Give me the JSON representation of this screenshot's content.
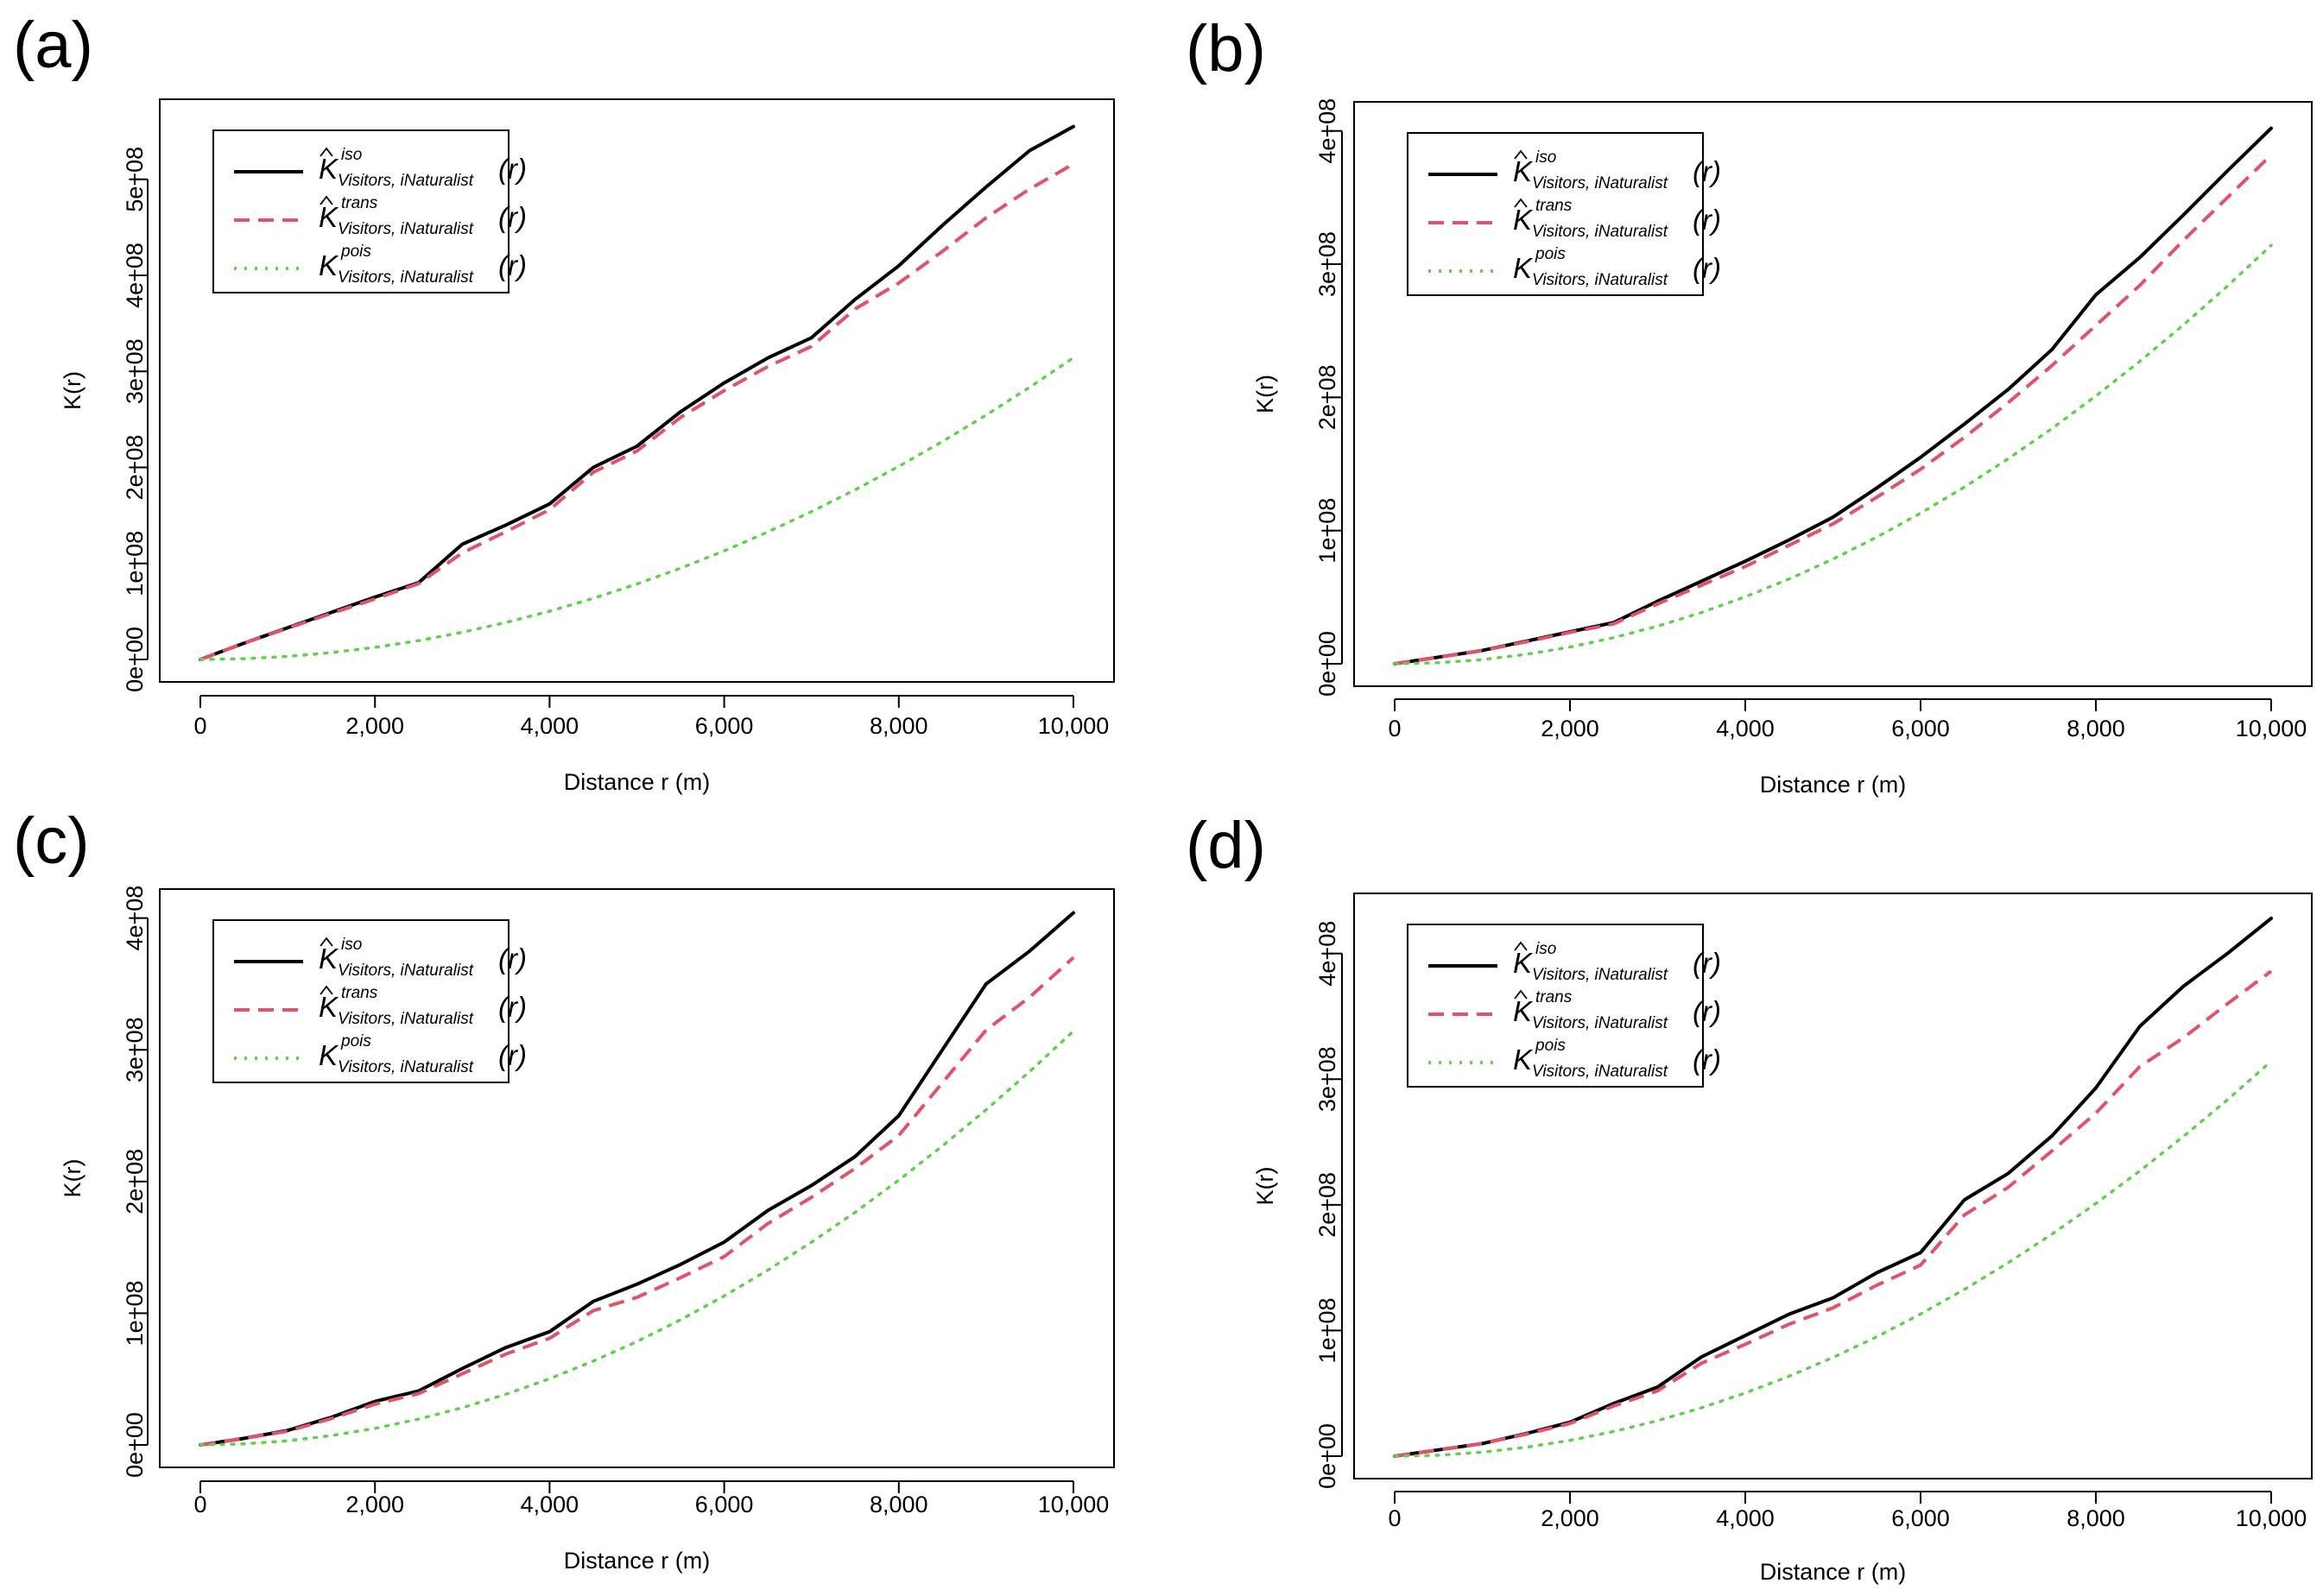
{
  "figure": {
    "x_axis_title": "Distance r (m)",
    "y_axis_title": "K(r)",
    "series_styles": [
      {
        "key": "iso",
        "color": "#000000",
        "dash": "solid"
      },
      {
        "key": "trans",
        "color": "#df536b",
        "dash": "dashed"
      },
      {
        "key": "pois",
        "color": "#61d04f",
        "dash": "dotted"
      }
    ],
    "legend": {
      "symbol": "K",
      "subscript": "Visitors, iNaturalist",
      "argument": "(r)",
      "entries": [
        {
          "key": "iso",
          "superscript": "iso",
          "hat": true
        },
        {
          "key": "trans",
          "superscript": "trans",
          "hat": true
        },
        {
          "key": "pois",
          "superscript": "pois",
          "hat": false
        }
      ]
    }
  },
  "chart_data": [
    {
      "panel_label": "(a)",
      "type": "line",
      "xlabel": "Distance r (m)",
      "ylabel": "K(r)",
      "xlim": [
        0,
        10000
      ],
      "ylim": [
        0,
        560000000
      ],
      "x_ticks": [
        0,
        2000,
        4000,
        6000,
        8000,
        10000
      ],
      "x_tick_labels": [
        "0",
        "2,000",
        "4,000",
        "6,000",
        "8,000",
        "10,000"
      ],
      "y_ticks": [
        0,
        100000000,
        200000000,
        300000000,
        400000000,
        500000000
      ],
      "y_tick_labels": [
        "0e+00",
        "1e+08",
        "2e+08",
        "3e+08",
        "4e+08",
        "5e+08"
      ],
      "legend_position": "top-left",
      "x": [
        0,
        500,
        1000,
        1500,
        2000,
        2500,
        3000,
        3500,
        4000,
        4500,
        5000,
        5500,
        6000,
        6500,
        7000,
        7500,
        8000,
        8500,
        9000,
        9500,
        10000
      ],
      "series": [
        {
          "name": "iso",
          "values": [
            0,
            17000000,
            33000000,
            49000000,
            65000000,
            80000000,
            120000000,
            140000000,
            162000000,
            200000000,
            222000000,
            258000000,
            288000000,
            314000000,
            335000000,
            375000000,
            410000000,
            452000000,
            492000000,
            530000000,
            555000000
          ]
        },
        {
          "name": "trans",
          "values": [
            0,
            17000000,
            32500000,
            48000000,
            63000000,
            79000000,
            111000000,
            133000000,
            156000000,
            195000000,
            217000000,
            252000000,
            280000000,
            305000000,
            326000000,
            365000000,
            392000000,
            425000000,
            460000000,
            490000000,
            516000000
          ]
        },
        {
          "name": "pois",
          "values": [
            0,
            785000,
            3140000,
            7070000,
            12570000,
            19630000,
            28270000,
            38480000,
            50270000,
            63620000,
            78540000,
            95030000,
            113100000,
            132730000,
            153940000,
            176710000,
            201060000,
            226980000,
            254470000,
            283530000,
            314160000
          ]
        }
      ]
    },
    {
      "panel_label": "(b)",
      "type": "line",
      "xlabel": "Distance r (m)",
      "ylabel": "K(r)",
      "xlim": [
        0,
        10000
      ],
      "ylim": [
        0,
        405000000
      ],
      "x_ticks": [
        0,
        2000,
        4000,
        6000,
        8000,
        10000
      ],
      "x_tick_labels": [
        "0",
        "2,000",
        "4,000",
        "6,000",
        "8,000",
        "10,000"
      ],
      "y_ticks": [
        0,
        100000000,
        200000000,
        300000000,
        400000000
      ],
      "y_tick_labels": [
        "0e+00",
        "1e+08",
        "2e+08",
        "3e+08",
        "4e+08"
      ],
      "legend_position": "top-left",
      "x": [
        0,
        500,
        1000,
        1500,
        2000,
        2500,
        3000,
        3500,
        4000,
        4500,
        5000,
        5500,
        6000,
        6500,
        7000,
        7500,
        8000,
        8500,
        9000,
        9500,
        10000
      ],
      "series": [
        {
          "name": "iso",
          "values": [
            0,
            5000000,
            10000000,
            17000000,
            24000000,
            31000000,
            47000000,
            62000000,
            77000000,
            93000000,
            110000000,
            132000000,
            155000000,
            180000000,
            206000000,
            236000000,
            277000000,
            305000000,
            337000000,
            370000000,
            402000000
          ]
        },
        {
          "name": "trans",
          "values": [
            0,
            5000000,
            10000000,
            16500000,
            23500000,
            30000000,
            45000000,
            59000000,
            73000000,
            89000000,
            105000000,
            125000000,
            146000000,
            170000000,
            196000000,
            224000000,
            254000000,
            284000000,
            318000000,
            350000000,
            382000000
          ]
        },
        {
          "name": "pois",
          "values": [
            0,
            785000,
            3140000,
            7070000,
            12570000,
            19630000,
            28270000,
            38480000,
            50270000,
            63620000,
            78540000,
            95030000,
            113100000,
            132730000,
            153940000,
            176710000,
            201060000,
            226980000,
            254470000,
            283530000,
            314160000
          ]
        }
      ]
    },
    {
      "panel_label": "(c)",
      "type": "line",
      "xlabel": "Distance r (m)",
      "ylabel": "K(r)",
      "xlim": [
        0,
        10000
      ],
      "ylim": [
        0,
        405000000
      ],
      "x_ticks": [
        0,
        2000,
        4000,
        6000,
        8000,
        10000
      ],
      "x_tick_labels": [
        "0",
        "2,000",
        "4,000",
        "6,000",
        "8,000",
        "10,000"
      ],
      "y_ticks": [
        0,
        100000000,
        200000000,
        300000000,
        400000000
      ],
      "y_tick_labels": [
        "0e+00",
        "1e+08",
        "2e+08",
        "3e+08",
        "4e+08"
      ],
      "legend_position": "top-left",
      "x": [
        0,
        500,
        1000,
        1500,
        2000,
        2500,
        3000,
        3500,
        4000,
        4500,
        5000,
        5500,
        6000,
        6500,
        7000,
        7500,
        8000,
        8500,
        9000,
        9500,
        10000
      ],
      "series": [
        {
          "name": "iso",
          "values": [
            0,
            5000000,
            11000000,
            21000000,
            33000000,
            41000000,
            58000000,
            74000000,
            86000000,
            109000000,
            122000000,
            137000000,
            154000000,
            178000000,
            197000000,
            219000000,
            250000000,
            300000000,
            350000000,
            375000000,
            404000000
          ]
        },
        {
          "name": "trans",
          "values": [
            0,
            5000000,
            10500000,
            20000000,
            31000000,
            39000000,
            54000000,
            69000000,
            81000000,
            102000000,
            112000000,
            127000000,
            143000000,
            168000000,
            188000000,
            210000000,
            235000000,
            275000000,
            315000000,
            340000000,
            370000000
          ]
        },
        {
          "name": "pois",
          "values": [
            0,
            785000,
            3140000,
            7070000,
            12570000,
            19630000,
            28270000,
            38480000,
            50270000,
            63620000,
            78540000,
            95030000,
            113100000,
            132730000,
            153940000,
            176710000,
            201060000,
            226980000,
            254470000,
            283530000,
            314160000
          ]
        }
      ]
    },
    {
      "panel_label": "(d)",
      "type": "line",
      "xlabel": "Distance r (m)",
      "ylabel": "K(r)",
      "xlim": [
        0,
        10000
      ],
      "ylim": [
        0,
        430000000
      ],
      "x_ticks": [
        0,
        2000,
        4000,
        6000,
        8000,
        10000
      ],
      "x_tick_labels": [
        "0",
        "2,000",
        "4,000",
        "6,000",
        "8,000",
        "10,000"
      ],
      "y_ticks": [
        0,
        100000000,
        200000000,
        300000000,
        400000000
      ],
      "y_tick_labels": [
        "0e+00",
        "1e+08",
        "2e+08",
        "3e+08",
        "4e+08"
      ],
      "legend_position": "top-left",
      "x": [
        0,
        500,
        1000,
        1500,
        2000,
        2500,
        3000,
        3500,
        4000,
        4500,
        5000,
        5500,
        6000,
        6500,
        7000,
        7500,
        8000,
        8500,
        9000,
        9500,
        10000
      ],
      "series": [
        {
          "name": "iso",
          "values": [
            0,
            5000000,
            10000000,
            18000000,
            27000000,
            42000000,
            55000000,
            79000000,
            96000000,
            113000000,
            126000000,
            146000000,
            162000000,
            204000000,
            225000000,
            255000000,
            293000000,
            342000000,
            374000000,
            400000000,
            428000000
          ]
        },
        {
          "name": "trans",
          "values": [
            0,
            5000000,
            10000000,
            17500000,
            26000000,
            40000000,
            52000000,
            74000000,
            89000000,
            105000000,
            118000000,
            136000000,
            152000000,
            192000000,
            214000000,
            243000000,
            273000000,
            310000000,
            333000000,
            360000000,
            386000000
          ]
        },
        {
          "name": "pois",
          "values": [
            0,
            785000,
            3140000,
            7070000,
            12570000,
            19630000,
            28270000,
            38480000,
            50270000,
            63620000,
            78540000,
            95030000,
            113100000,
            132730000,
            153940000,
            176710000,
            201060000,
            226980000,
            254470000,
            283530000,
            314160000
          ]
        }
      ]
    }
  ]
}
